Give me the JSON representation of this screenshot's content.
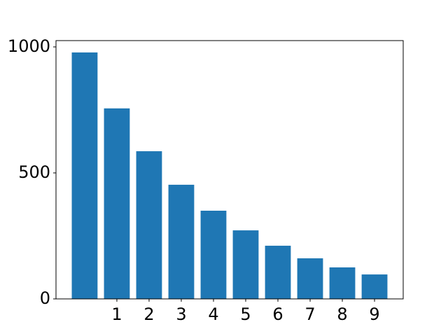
{
  "chart_data": {
    "type": "bar",
    "categories": [
      null,
      "1",
      "2",
      "3",
      "4",
      "5",
      "6",
      "7",
      "8",
      "9"
    ],
    "values": [
      978,
      756,
      586,
      453,
      350,
      272,
      211,
      161,
      125,
      97
    ],
    "color": "#1f77b4",
    "ylim": [
      0,
      1025
    ],
    "yticks": [
      0,
      500,
      1000
    ],
    "grid": false
  }
}
